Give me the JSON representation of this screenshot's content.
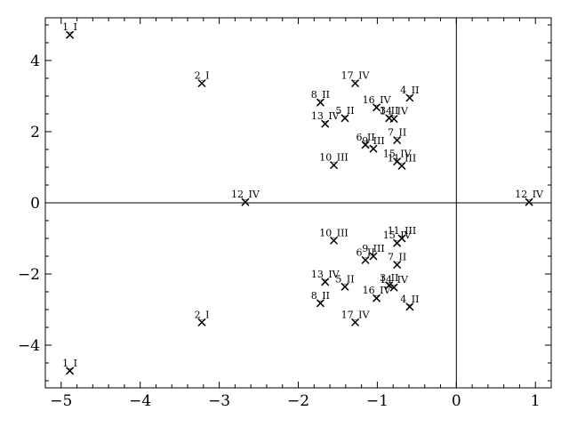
{
  "chart_data": {
    "type": "scatter",
    "title": "",
    "xlabel": "",
    "ylabel": "",
    "xlim": [
      -5.2,
      1.2
    ],
    "ylim": [
      -5.2,
      5.2
    ],
    "xticks": [
      -5,
      -4,
      -3,
      -2,
      -1,
      0,
      1
    ],
    "xtick_labels": [
      "−5",
      "−4",
      "−3",
      "−2",
      "−1",
      "0",
      "1"
    ],
    "yticks": [
      -4,
      -2,
      0,
      2,
      4
    ],
    "ytick_labels": [
      "−4",
      "−2",
      "0",
      "2",
      "4"
    ],
    "grid": false,
    "reference_lines": {
      "x": 0,
      "y": 0
    },
    "marker": "x",
    "color": "#000000",
    "points": [
      {
        "label": "1_I",
        "x": -4.89,
        "y": 4.72
      },
      {
        "label": "2_I",
        "x": -3.22,
        "y": 3.36
      },
      {
        "label": "17_IV",
        "x": -1.28,
        "y": 3.36
      },
      {
        "label": "8_II",
        "x": -1.72,
        "y": 2.82
      },
      {
        "label": "4_II",
        "x": -0.59,
        "y": 2.95
      },
      {
        "label": "16_IV",
        "x": -1.01,
        "y": 2.68
      },
      {
        "label": "5_II",
        "x": -1.41,
        "y": 2.38
      },
      {
        "label": "3_II",
        "x": -0.85,
        "y": 2.38
      },
      {
        "label": "14_IV",
        "x": -0.79,
        "y": 2.36
      },
      {
        "label": "13_IV",
        "x": -1.66,
        "y": 2.22
      },
      {
        "label": "7_II",
        "x": -0.75,
        "y": 1.76
      },
      {
        "label": "6_II",
        "x": -1.15,
        "y": 1.63
      },
      {
        "label": "9_III",
        "x": -1.05,
        "y": 1.52
      },
      {
        "label": "15_IV",
        "x": -0.75,
        "y": 1.16
      },
      {
        "label": "11_III",
        "x": -0.69,
        "y": 1.04
      },
      {
        "label": "10_III",
        "x": -1.55,
        "y": 1.06
      },
      {
        "label": "12_IV",
        "x": -2.67,
        "y": 0.02
      },
      {
        "label": "12_IV",
        "x": 0.92,
        "y": 0.02
      },
      {
        "label": "10_III",
        "x": -1.55,
        "y": -1.06
      },
      {
        "label": "11_III",
        "x": -0.69,
        "y": -1.0
      },
      {
        "label": "15_IV",
        "x": -0.75,
        "y": -1.13
      },
      {
        "label": "9_III",
        "x": -1.05,
        "y": -1.5
      },
      {
        "label": "6_II",
        "x": -1.15,
        "y": -1.61
      },
      {
        "label": "7_II",
        "x": -0.75,
        "y": -1.74
      },
      {
        "label": "13_IV",
        "x": -1.66,
        "y": -2.22
      },
      {
        "label": "5_II",
        "x": -1.41,
        "y": -2.36
      },
      {
        "label": "3_II",
        "x": -0.85,
        "y": -2.32
      },
      {
        "label": "14_IV",
        "x": -0.79,
        "y": -2.38
      },
      {
        "label": "16_IV",
        "x": -1.01,
        "y": -2.68
      },
      {
        "label": "8_II",
        "x": -1.72,
        "y": -2.82
      },
      {
        "label": "4_II",
        "x": -0.59,
        "y": -2.92
      },
      {
        "label": "17_IV",
        "x": -1.28,
        "y": -3.36
      },
      {
        "label": "2_I",
        "x": -3.22,
        "y": -3.36
      },
      {
        "label": "1_I",
        "x": -4.89,
        "y": -4.72
      }
    ]
  }
}
